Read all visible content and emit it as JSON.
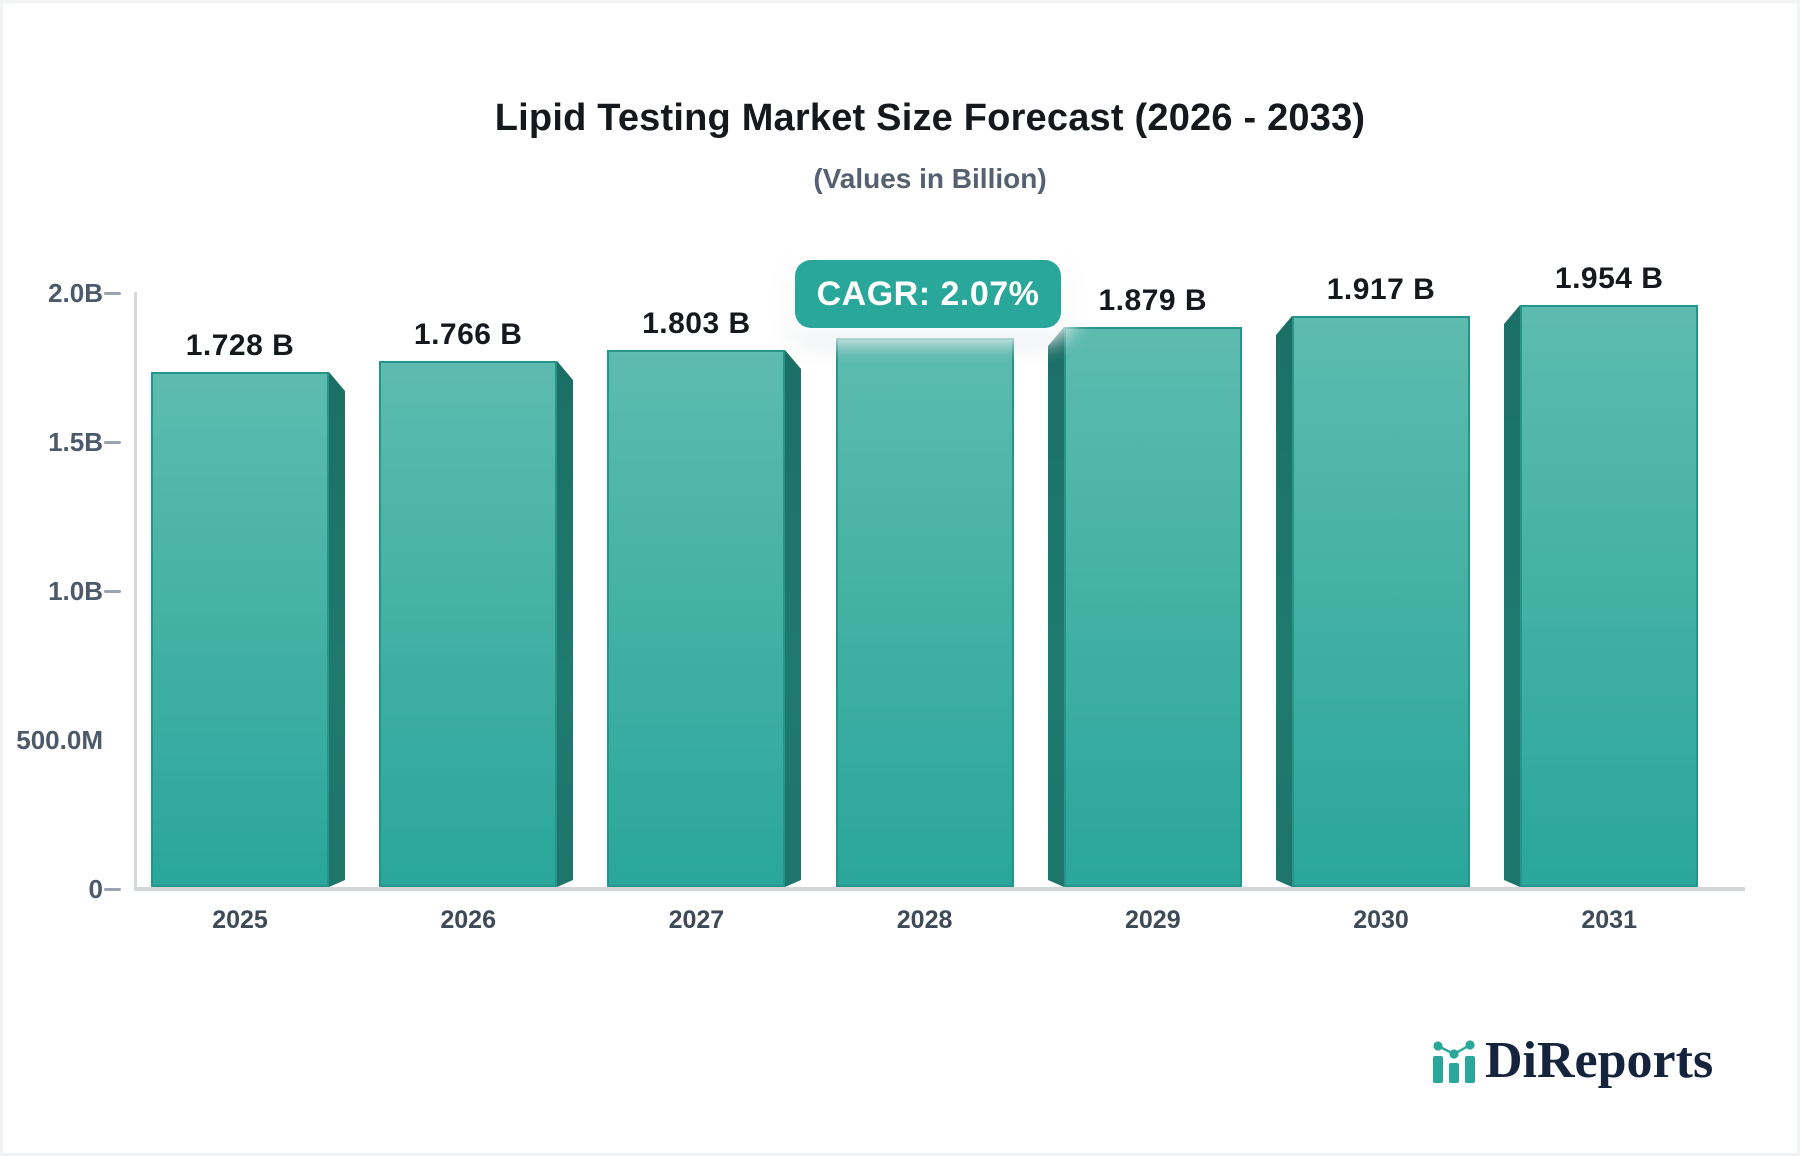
{
  "title": "Lipid Testing Market Size Forecast (2026 - 2033)",
  "subtitle": "(Values in Billion)",
  "badge": {
    "label": "CAGR: 2.07%"
  },
  "logo": {
    "text": "DiReports",
    "icon": "mini-bar-chart-icon"
  },
  "colors": {
    "bar_face_top": "#5dbbaf",
    "bar_face_bottom": "#2aa69a",
    "bar_border": "#27948a",
    "bar_side": "#1f7a70",
    "badge_bg": "#2aa79b",
    "axis_line": "#d3d7dc",
    "tick_dash": "#9aa4b0",
    "axis_text": "#4c5a6b",
    "value_text": "#15181d",
    "logo_navy": "#15233c",
    "logo_teal": "#2ba69a"
  },
  "chart_data": {
    "type": "bar",
    "title": "Lipid Testing Market Size Forecast (2026 - 2033)",
    "subtitle": "(Values in Billion)",
    "unit": "Billion",
    "cagr_label": "CAGR: 2.07%",
    "categories": [
      "2025",
      "2026",
      "2027",
      "2028",
      "2029",
      "2030",
      "2031"
    ],
    "values": [
      1.728,
      1.766,
      1.803,
      1.841,
      1.879,
      1.917,
      1.954
    ],
    "bar_labels": [
      "1.728 B",
      "1.766 B",
      "1.803 B",
      "",
      "1.879 B",
      "1.917 B",
      "1.954 B"
    ],
    "xlabel": "",
    "ylabel": "",
    "ylim": [
      0,
      2.0
    ],
    "grid": false,
    "legend": "none",
    "y_ticks": [
      {
        "label": "2.0B",
        "value": 2.0,
        "has_dash": true
      },
      {
        "label": "1.5B",
        "value": 1.5,
        "has_dash": true
      },
      {
        "label": "1.0B",
        "value": 1.0,
        "has_dash": true
      },
      {
        "label": "500.0M",
        "value": 0.5,
        "has_dash": false
      },
      {
        "label": "0",
        "value": 0.0,
        "has_dash": true
      }
    ]
  }
}
